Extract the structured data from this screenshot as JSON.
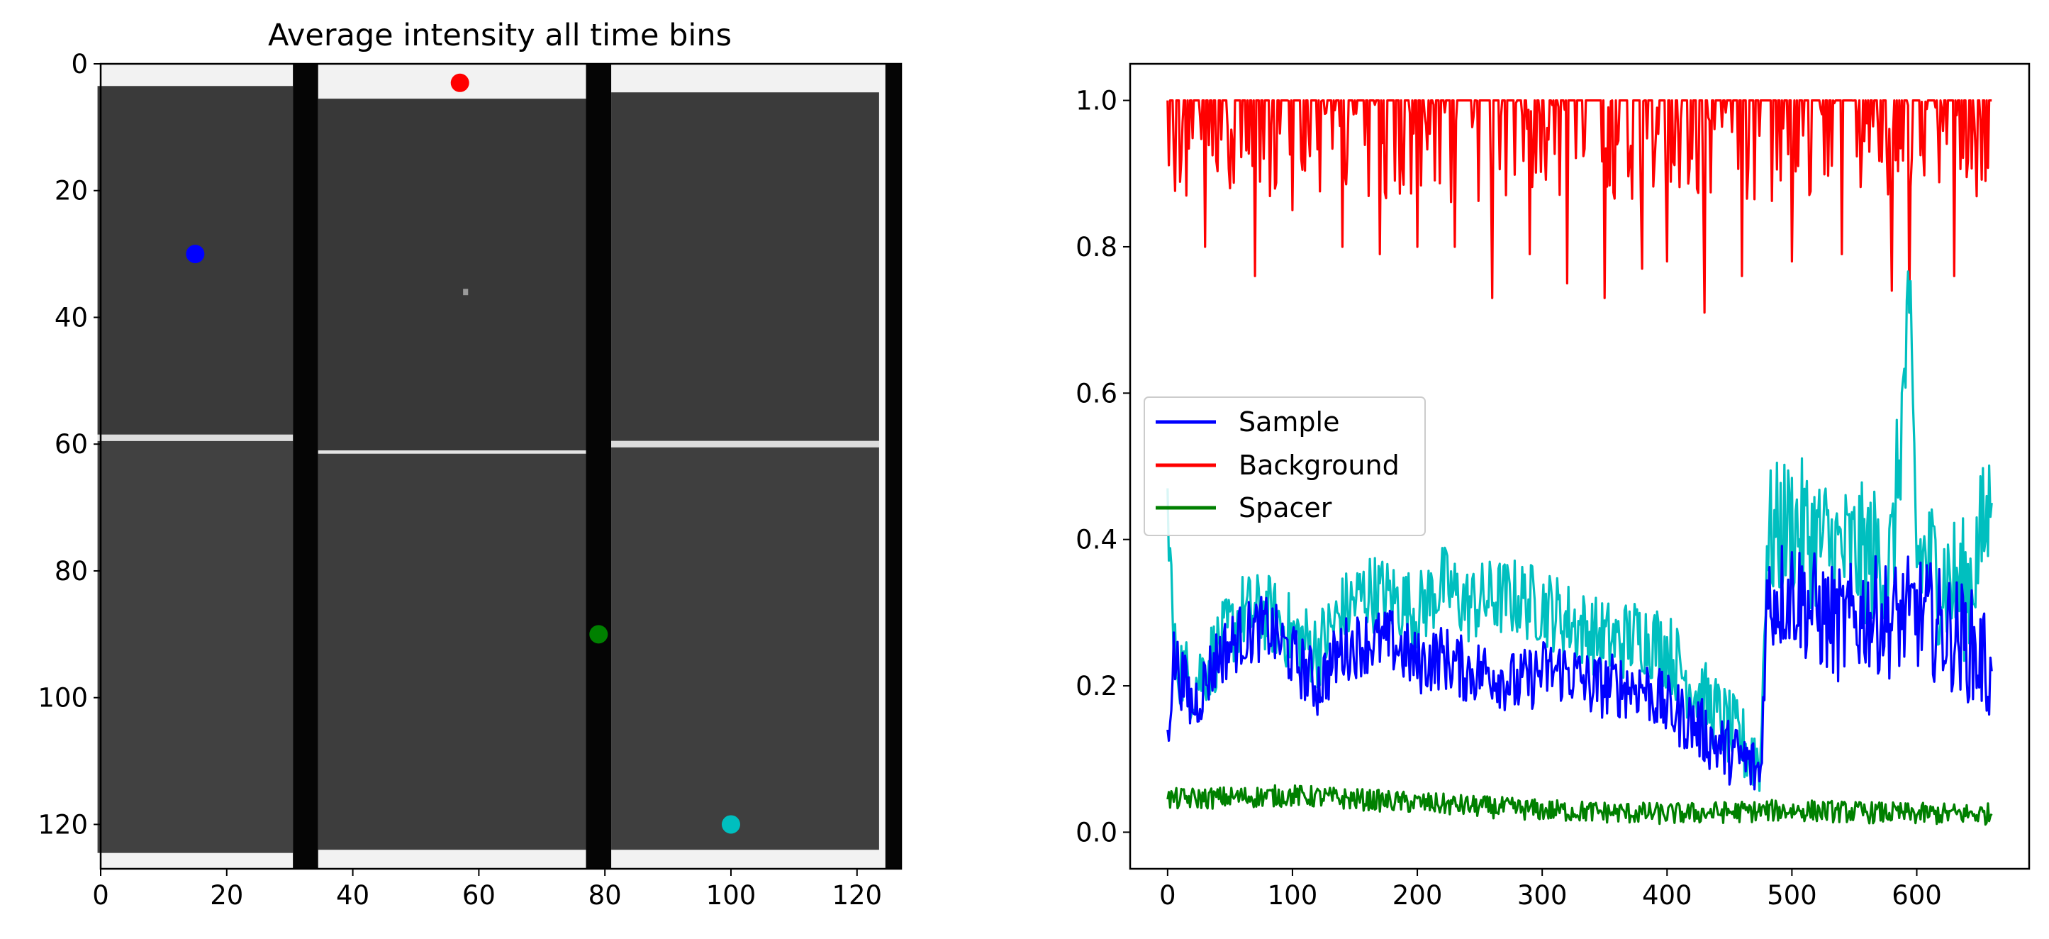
{
  "chart_data": [
    {
      "type": "heatmap",
      "title": "Average intensity all time bins",
      "xlim": [
        0,
        127
      ],
      "ylim": [
        127,
        0
      ],
      "x_ticks": [
        0,
        20,
        40,
        60,
        80,
        100,
        120
      ],
      "y_ticks": [
        0,
        20,
        40,
        60,
        80,
        100,
        120
      ],
      "colormap": "gray",
      "points": [
        {
          "x": 15,
          "y": 30,
          "color": "#0000ff"
        },
        {
          "x": 57,
          "y": 3,
          "color": "#ff0000"
        },
        {
          "x": 79,
          "y": 90,
          "color": "#008000"
        },
        {
          "x": 100,
          "y": 120,
          "color": "#00bfbf"
        }
      ]
    },
    {
      "type": "line",
      "xlim": [
        -30,
        690
      ],
      "ylim": [
        -0.05,
        1.05
      ],
      "x_ticks": [
        0,
        100,
        200,
        300,
        400,
        500,
        600
      ],
      "y_ticks": [
        "0.0",
        "0.2",
        "0.4",
        "0.6",
        "0.8",
        "1.0"
      ],
      "legend_placement": "center-left",
      "series": [
        {
          "name": "Sample",
          "color": "#0000ff",
          "x": [
            0,
            5,
            20,
            40,
            60,
            80,
            100,
            120,
            140,
            160,
            180,
            200,
            220,
            240,
            260,
            280,
            300,
            320,
            340,
            360,
            380,
            400,
            420,
            440,
            460,
            475,
            480,
            500,
            520,
            540,
            560,
            580,
            600,
            620,
            640,
            660
          ],
          "y": [
            0.14,
            0.24,
            0.17,
            0.24,
            0.27,
            0.28,
            0.24,
            0.2,
            0.25,
            0.26,
            0.26,
            0.23,
            0.24,
            0.22,
            0.22,
            0.2,
            0.22,
            0.22,
            0.2,
            0.2,
            0.2,
            0.17,
            0.15,
            0.12,
            0.1,
            0.08,
            0.32,
            0.33,
            0.3,
            0.28,
            0.3,
            0.29,
            0.3,
            0.28,
            0.26,
            0.22
          ]
        },
        {
          "name": "Background",
          "color": "#ff0000",
          "x": [
            0,
            660
          ],
          "y": [
            1.0,
            1.0
          ],
          "dips": [
            [
              5,
              0.93
            ],
            [
              15,
              0.87
            ],
            [
              30,
              0.8
            ],
            [
              50,
              0.88
            ],
            [
              70,
              0.76
            ],
            [
              100,
              0.85
            ],
            [
              140,
              0.8
            ],
            [
              170,
              0.79
            ],
            [
              200,
              0.8
            ],
            [
              230,
              0.8
            ],
            [
              260,
              0.73
            ],
            [
              290,
              0.79
            ],
            [
              320,
              0.75
            ],
            [
              350,
              0.73
            ],
            [
              380,
              0.77
            ],
            [
              400,
              0.78
            ],
            [
              430,
              0.71
            ],
            [
              460,
              0.76
            ],
            [
              500,
              0.78
            ],
            [
              540,
              0.79
            ],
            [
              580,
              0.74
            ],
            [
              594,
              0.71
            ],
            [
              630,
              0.76
            ],
            [
              655,
              0.89
            ]
          ]
        },
        {
          "name": "Spacer",
          "color": "#008000",
          "x": [
            0,
            100,
            200,
            300,
            400,
            500,
            600,
            660
          ],
          "y": [
            0.045,
            0.05,
            0.04,
            0.03,
            0.025,
            0.03,
            0.025,
            0.025
          ]
        },
        {
          "color": "#00bfbf",
          "x": [
            0,
            5,
            20,
            40,
            60,
            80,
            100,
            120,
            140,
            160,
            180,
            200,
            220,
            240,
            260,
            280,
            300,
            320,
            340,
            360,
            380,
            400,
            420,
            440,
            460,
            475,
            480,
            500,
            520,
            540,
            560,
            580,
            594,
            600,
            620,
            640,
            660
          ],
          "y": [
            0.47,
            0.24,
            0.2,
            0.25,
            0.3,
            0.3,
            0.27,
            0.25,
            0.3,
            0.33,
            0.32,
            0.3,
            0.34,
            0.31,
            0.32,
            0.32,
            0.31,
            0.29,
            0.27,
            0.26,
            0.27,
            0.25,
            0.2,
            0.16,
            0.12,
            0.1,
            0.4,
            0.42,
            0.4,
            0.38,
            0.38,
            0.37,
            0.71,
            0.38,
            0.35,
            0.33,
            0.45
          ]
        }
      ]
    }
  ]
}
